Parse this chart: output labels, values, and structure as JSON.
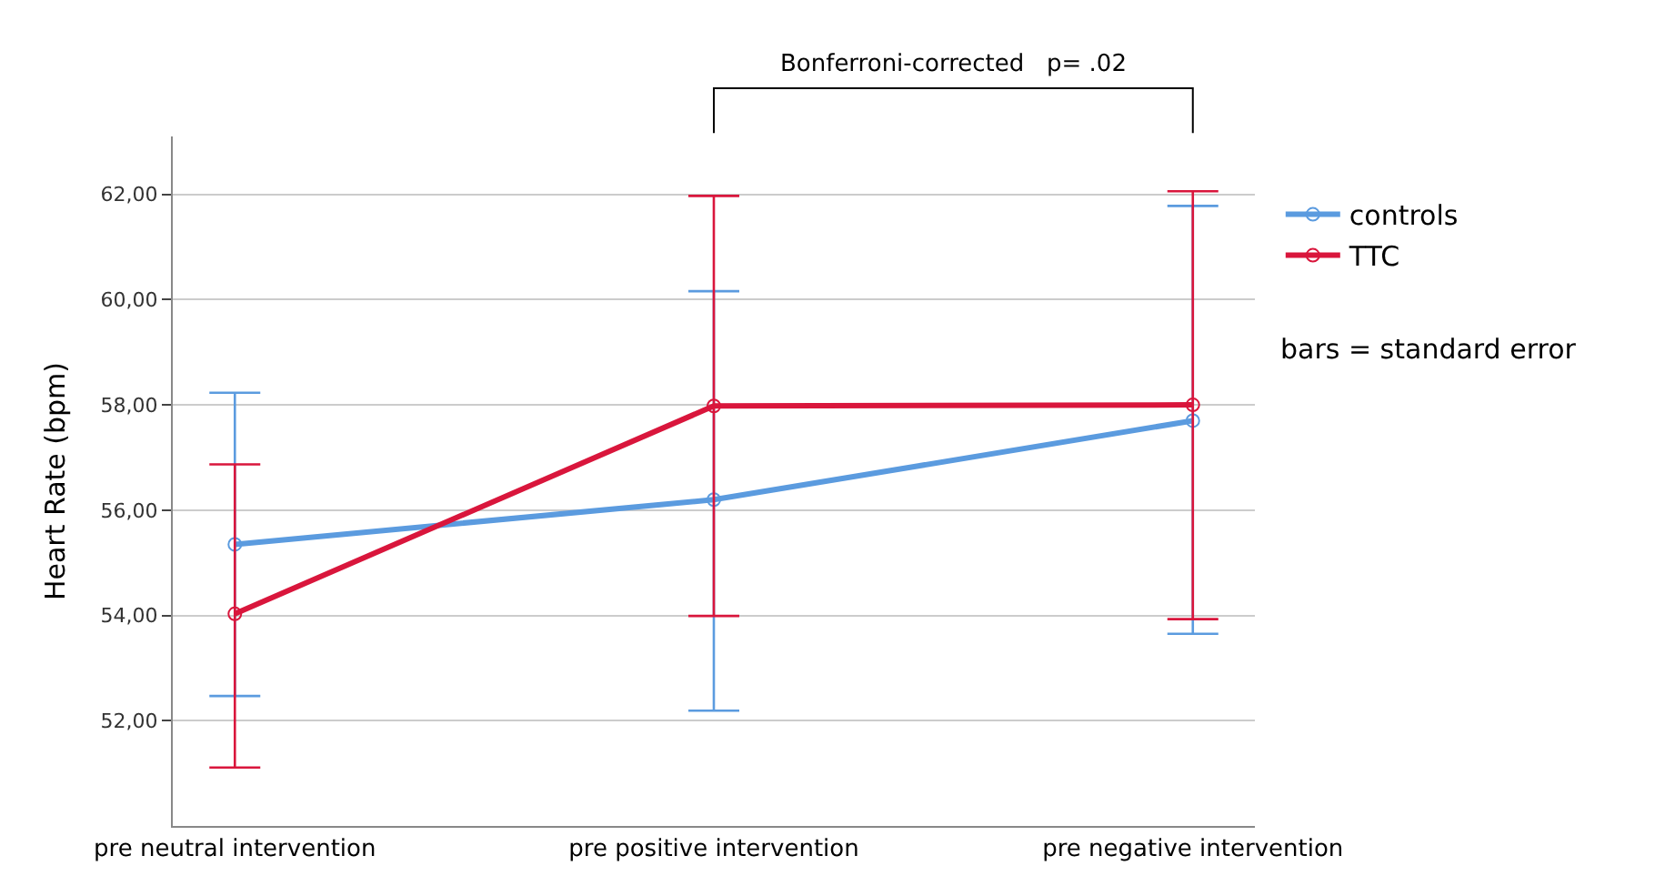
{
  "chart_data": {
    "type": "line",
    "ylabel": "Heart Rate (bpm)",
    "categories": [
      "pre neutral intervention",
      "pre positive intervention",
      "pre negative intervention"
    ],
    "series": [
      {
        "name": "controls",
        "color": "#5b9bdf",
        "values": [
          55.35,
          56.2,
          57.7
        ],
        "errors": [
          [
            52.47,
            58.23
          ],
          [
            52.19,
            60.16
          ],
          [
            53.65,
            61.78
          ]
        ]
      },
      {
        "name": "TTC",
        "color": "#d9163c",
        "values": [
          54.03,
          57.98,
          58.0
        ],
        "errors": [
          [
            51.11,
            56.87
          ],
          [
            53.99,
            61.97
          ],
          [
            53.93,
            62.06
          ]
        ]
      }
    ],
    "ylim": [
      50,
      63.1
    ],
    "yticks": [
      {
        "value": 52,
        "label": "52,00"
      },
      {
        "value": 54,
        "label": "54,00"
      },
      {
        "value": 56,
        "label": "56,00"
      },
      {
        "value": 58,
        "label": "58,00"
      },
      {
        "value": 60,
        "label": "60,00"
      },
      {
        "value": 62,
        "label": "62,00"
      }
    ],
    "grid": "y",
    "legend": "top right",
    "marker": "circle",
    "line_style": "solid",
    "annotations": [
      "Bonferroni-corrected   p= .02",
      "bars = standard error"
    ]
  }
}
